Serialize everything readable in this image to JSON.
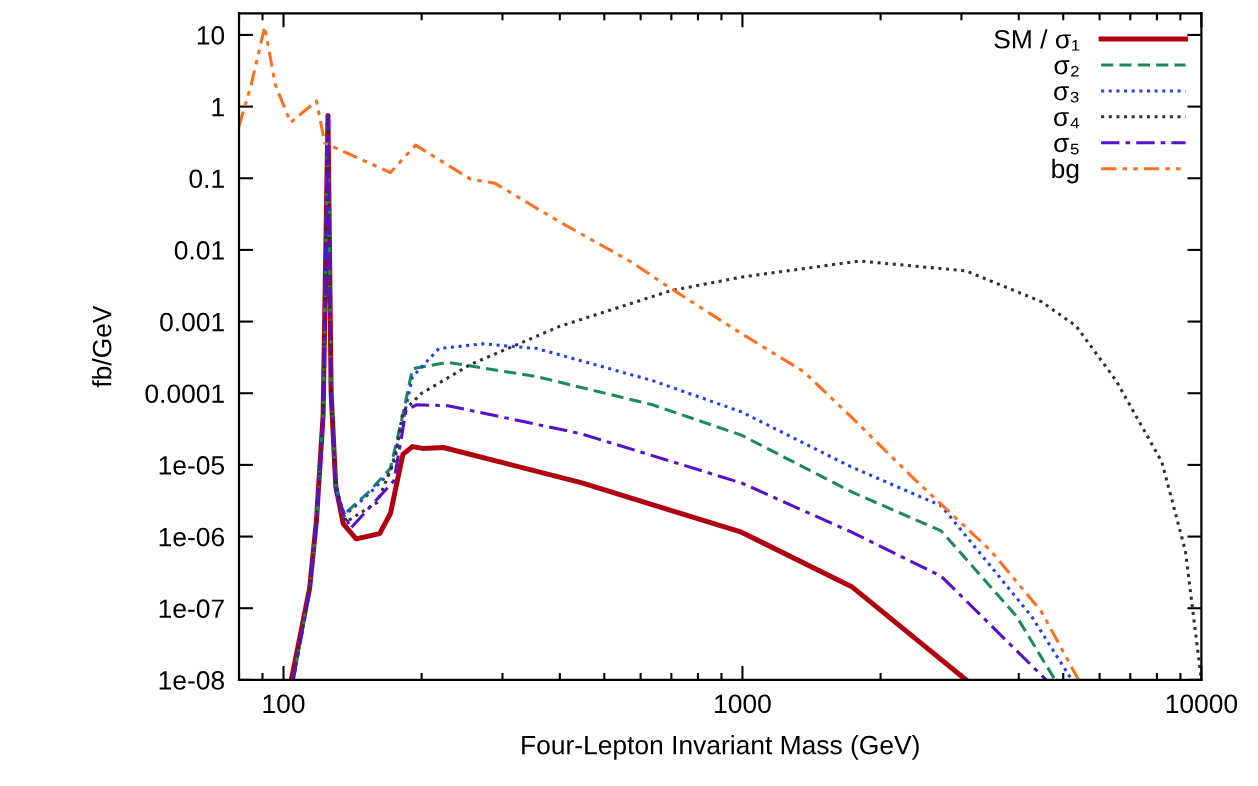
{
  "chart_data": {
    "type": "line",
    "xlabel": "Four-Lepton Invariant Mass (GeV)",
    "ylabel": "fb/GeV",
    "log": "xy",
    "grid": false,
    "legend": "top right",
    "xlim": [
      80,
      10000
    ],
    "xticks": [
      100,
      1000,
      10000
    ],
    "ylim": [
      1e-08,
      20
    ],
    "yticks": [
      {
        "value": 1e-08,
        "label": "1e-08"
      },
      {
        "value": 1e-07,
        "label": "1e-07"
      },
      {
        "value": 1e-06,
        "label": "1e-06"
      },
      {
        "value": 1e-05,
        "label": "1e-05"
      },
      0.0001,
      0.001,
      0.01,
      0.1,
      1,
      10
    ],
    "series": [
      {
        "name": "SM / σ₁",
        "color": "#b00010",
        "line_style": "solid",
        "x": [
          104,
          110,
          114,
          118,
          122,
          125,
          127,
          130,
          135,
          144,
          162,
          171,
          182,
          191,
          201,
          223,
          447,
          995,
          1730,
          3070
        ],
        "values": [
          1e-08,
          6e-08,
          1.9e-07,
          1.7e-06,
          5e-05,
          0.75,
          0.0001,
          5e-06,
          1.5e-06,
          9.3e-07,
          1.1e-06,
          2.1e-06,
          1.4e-05,
          1.8e-05,
          1.7e-05,
          1.75e-05,
          5.6e-06,
          1.15e-06,
          2e-07,
          1e-08
        ]
      },
      {
        "name": "σ₂",
        "color": "#1e8a5a",
        "line_style": "dashed",
        "x": [
          105,
          110,
          114,
          118,
          122,
          125,
          127,
          130,
          135,
          154,
          171,
          182,
          191,
          228,
          357,
          637,
          995,
          1730,
          2710,
          3950,
          4800
        ],
        "values": [
          1e-08,
          5e-08,
          1.8e-07,
          1.6e-06,
          5e-05,
          0.75,
          0.0001,
          5e-06,
          2e-06,
          4.3e-06,
          9e-06,
          5e-05,
          0.00022,
          0.00027,
          0.00017,
          6.9e-05,
          2.6e-05,
          4.2e-06,
          1.2e-06,
          7.8e-08,
          1e-08
        ]
      },
      {
        "name": "σ₃",
        "color": "#2040f0",
        "line_style": "dotted",
        "x": [
          130,
          135,
          154,
          171,
          182,
          191,
          218,
          272,
          357,
          637,
          995,
          1730,
          2710,
          4260,
          5220
        ],
        "values": [
          5e-06,
          1.9e-06,
          4e-06,
          8e-06,
          4e-05,
          0.00017,
          0.00042,
          0.00049,
          0.00042,
          0.00015,
          5.5e-05,
          9.3e-06,
          2.7e-06,
          7.8e-08,
          1e-08
        ]
      },
      {
        "name": "σ₄",
        "color": "#303030",
        "line_style": "dotted",
        "x": [
          105,
          110,
          114,
          118,
          122,
          125,
          127,
          130,
          137,
          160,
          175,
          182,
          200,
          255,
          398,
          698,
          1000,
          1800,
          3070,
          4480,
          5330,
          6520,
          8200,
          9230,
          10000
        ],
        "values": [
          1e-08,
          5e-08,
          1.8e-07,
          1.6e-06,
          5e-05,
          0.75,
          0.0001,
          5e-06,
          1.6e-06,
          3e-06,
          1.2e-05,
          5.5e-05,
          0.0001,
          0.00025,
          0.00085,
          0.0027,
          0.0042,
          0.007,
          0.0051,
          0.0019,
          0.00087,
          0.00015,
          1.1e-05,
          6.3e-07,
          1e-08
        ]
      },
      {
        "name": "σ₅",
        "color": "#5510c8",
        "line_style": "dashdot",
        "x": [
          105,
          110,
          114,
          118,
          122,
          125,
          127,
          130,
          140,
          174,
          185,
          195,
          228,
          447,
          995,
          1730,
          2710,
          4590
        ],
        "values": [
          1e-08,
          5e-08,
          1.8e-07,
          1.6e-06,
          5e-05,
          0.75,
          0.0001,
          4e-06,
          1.3e-06,
          6e-06,
          5.8e-05,
          6.9e-05,
          6.7e-05,
          2.7e-05,
          5.6e-06,
          1.15e-06,
          2.8e-07,
          1e-08
        ]
      },
      {
        "name": "bg",
        "color": "#ff7020",
        "line_style": "dashdotdot",
        "x": [
          80,
          85,
          91,
          96,
          103.6,
          118,
          123,
          171,
          194,
          255,
          289,
          398,
          570,
          698,
          995,
          1360,
          1730,
          2390,
          3480,
          4480,
          5400
        ],
        "values": [
          0.53,
          2,
          13,
          2,
          0.6,
          1.2,
          0.31,
          0.12,
          0.29,
          0.098,
          0.085,
          0.025,
          0.0069,
          0.0029,
          0.00068,
          0.0002,
          4.6e-05,
          6e-06,
          6.3e-07,
          9e-08,
          1e-08
        ]
      }
    ]
  }
}
